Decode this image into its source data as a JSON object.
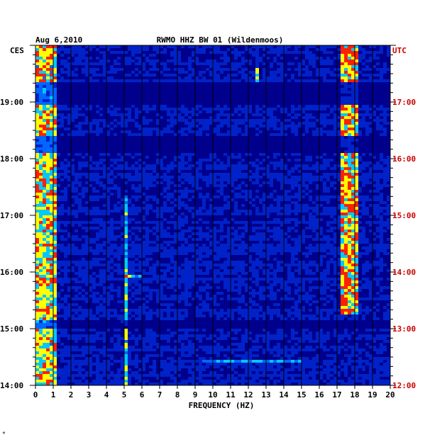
{
  "chart_data": {
    "type": "heatmap",
    "title": "RWMO HHZ BW 01 (Wildenmoos)",
    "date": "Aug 6,2010",
    "xlabel": "FREQUENCY (HZ)",
    "left_timezone": "CES",
    "right_timezone": "UTC",
    "xlim": [
      0,
      20
    ],
    "x_ticks": [
      "0",
      "1",
      "2",
      "3",
      "4",
      "5",
      "6",
      "7",
      "8",
      "9",
      "10",
      "11",
      "12",
      "13",
      "14",
      "15",
      "16",
      "17",
      "18",
      "19",
      "20"
    ],
    "y_ticks_left": [
      "19:00",
      "18:00",
      "17:00",
      "16:00",
      "15:00",
      "14:00"
    ],
    "y_ticks_right": [
      "17:00",
      "16:00",
      "15:00",
      "14:00",
      "13:00",
      "12:00"
    ],
    "time_range_ces": [
      "14:00",
      "20:00"
    ],
    "grid": true,
    "colormap": [
      "#00008c",
      "#0022c8",
      "#0066ff",
      "#00c8ff",
      "#ffff00",
      "#ff2000"
    ],
    "features": [
      {
        "name": "low-frequency band",
        "freq_range_hz": [
          0.1,
          1.2
        ],
        "intensity": 0.65
      },
      {
        "name": "persistent line near 17.8 Hz",
        "freq_range_hz": [
          17.2,
          18.2
        ],
        "intensity": 0.7,
        "time_ces": [
          "15:15",
          "20:00"
        ]
      },
      {
        "name": "line near 5.1 Hz",
        "freq_range_hz": [
          5.0,
          5.2
        ],
        "intensity": 0.5,
        "time_ces": [
          "14:00",
          "17:20"
        ]
      },
      {
        "name": "transient at 12.5 Hz",
        "freq_range_hz": [
          12.4,
          12.6
        ],
        "intensity": 0.6,
        "time_ces": [
          "19:20",
          "19:35"
        ]
      }
    ],
    "horizontal_features_ces": [
      {
        "time": "18:45",
        "freq_range_hz": [
          2.5,
          15.3
        ],
        "intensity": 0.5
      },
      {
        "time": "15:55",
        "freq_range_hz": [
          5.0,
          6.0
        ],
        "intensity": 0.55
      },
      {
        "time": "15:07",
        "freq_range_hz": [
          4.5,
          5.2
        ],
        "intensity": 0.55
      },
      {
        "time": "14:25",
        "freq_range_hz": [
          9.5,
          15.0
        ],
        "intensity": 0.4
      },
      {
        "time": "14:45",
        "freq_range_hz": [
          10.0,
          14.5
        ],
        "intensity": 0.4
      }
    ],
    "dark_gaps_ces": [
      {
        "from": "18:05",
        "to": "18:25"
      },
      {
        "from": "18:57",
        "to": "19:22"
      },
      {
        "from": "15:00",
        "to": "15:10"
      }
    ]
  },
  "footer_mark": "*"
}
